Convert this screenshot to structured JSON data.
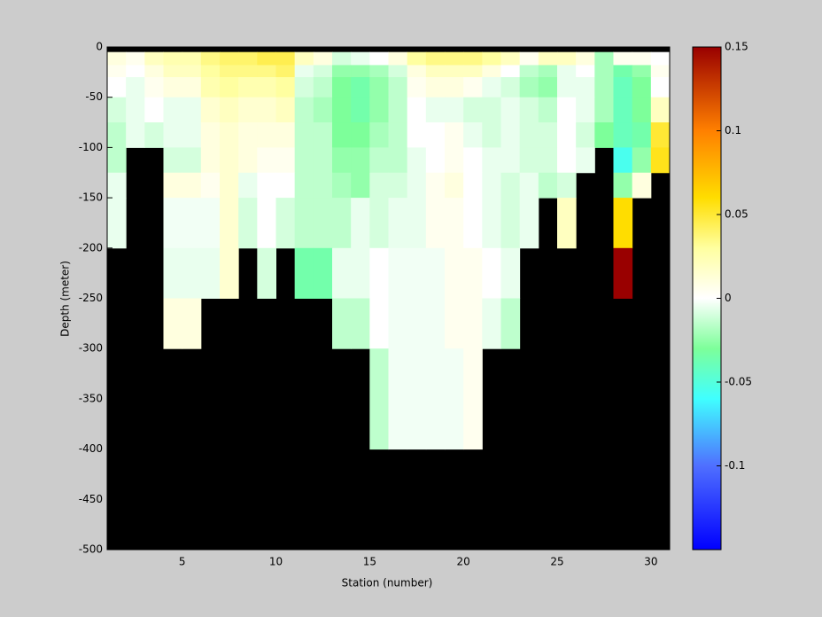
{
  "chart_data": {
    "type": "heatmap",
    "xlabel": "Station (number)",
    "ylabel": "Depth (meter)",
    "xlim": [
      1,
      31
    ],
    "ylim": [
      -500,
      0
    ],
    "xticks": [
      5,
      10,
      15,
      20,
      25,
      30
    ],
    "yticks": [
      0,
      -50,
      -100,
      -150,
      -200,
      -250,
      -300,
      -350,
      -400,
      -450,
      -500
    ],
    "x_edges": [
      1,
      2,
      3,
      4,
      5,
      6,
      7,
      8,
      9,
      10,
      11,
      12,
      13,
      14,
      15,
      16,
      17,
      18,
      19,
      20,
      21,
      22,
      23,
      24,
      25,
      26,
      27,
      28,
      29,
      30,
      31
    ],
    "y_edges": [
      -5,
      -18,
      -30,
      -50,
      -75,
      -100,
      -125,
      -150,
      -200,
      -250,
      -300,
      -400
    ],
    "nan_color": "#000000",
    "clim": [
      -0.15,
      0.15
    ],
    "cticks": [
      0.15,
      0.1,
      0.05,
      0,
      -0.05,
      -0.1
    ],
    "colorscale": [
      [
        -0.15,
        "#0000ff"
      ],
      [
        -0.1,
        "#4f6fff"
      ],
      [
        -0.06,
        "#40ffff"
      ],
      [
        -0.03,
        "#7dff9a"
      ],
      [
        0,
        "#ffffff"
      ],
      [
        0.03,
        "#ffffa0"
      ],
      [
        0.06,
        "#ffdd00"
      ],
      [
        0.1,
        "#ff8000"
      ],
      [
        0.15,
        "#990000"
      ]
    ],
    "z": [
      [
        0.01,
        0.005,
        0.02,
        0.025,
        0.025,
        0.035,
        0.04,
        0.04,
        0.045,
        0.045,
        0.02,
        0.01,
        -0.01,
        -0.005,
        0,
        0.01,
        0.03,
        0.035,
        0.035,
        0.035,
        0.03,
        0.02,
        0.005,
        0.02,
        0.02,
        0.01,
        -0.02,
        0.005,
        0.005,
        0
      ],
      [
        0.005,
        0,
        0.01,
        0.02,
        0.02,
        0.03,
        0.035,
        0.035,
        0.035,
        0.04,
        -0.005,
        -0.01,
        -0.025,
        -0.025,
        -0.02,
        -0.01,
        0.01,
        0.02,
        0.02,
        0.02,
        0.01,
        0,
        -0.015,
        -0.02,
        -0.005,
        0,
        -0.02,
        -0.035,
        -0.025,
        0.005
      ],
      [
        0,
        -0.005,
        0.005,
        0.01,
        0.01,
        0.025,
        0.03,
        0.025,
        0.025,
        0.03,
        -0.01,
        -0.015,
        -0.03,
        -0.035,
        -0.025,
        -0.015,
        0.005,
        0.01,
        0.01,
        0.005,
        -0.005,
        -0.01,
        -0.02,
        -0.025,
        -0.005,
        -0.005,
        -0.02,
        -0.04,
        -0.03,
        0
      ],
      [
        -0.01,
        -0.005,
        0,
        -0.005,
        -0.005,
        0.015,
        0.02,
        0.015,
        0.015,
        0.02,
        -0.015,
        -0.02,
        -0.03,
        -0.035,
        -0.025,
        -0.015,
        0,
        -0.005,
        -0.005,
        -0.01,
        -0.01,
        -0.005,
        -0.01,
        -0.015,
        0,
        -0.005,
        -0.02,
        -0.04,
        -0.03,
        0.02
      ],
      [
        -0.015,
        -0.005,
        -0.01,
        -0.005,
        -0.005,
        0.01,
        0.015,
        0.01,
        0.01,
        0.01,
        -0.015,
        -0.015,
        -0.03,
        -0.03,
        -0.02,
        -0.015,
        0,
        0,
        0.005,
        -0.005,
        -0.01,
        -0.005,
        -0.01,
        -0.01,
        0,
        -0.01,
        -0.03,
        -0.04,
        -0.035,
        0.05
      ],
      [
        -0.015,
        null,
        null,
        -0.01,
        -0.01,
        0.01,
        0.015,
        0.01,
        0.005,
        0.005,
        -0.015,
        -0.015,
        -0.025,
        -0.025,
        -0.015,
        -0.015,
        -0.005,
        0,
        0.005,
        0,
        -0.005,
        -0.005,
        -0.01,
        -0.01,
        0,
        -0.005,
        null,
        -0.055,
        -0.025,
        0.055
      ],
      [
        -0.005,
        null,
        null,
        0.01,
        0.01,
        0.005,
        0.015,
        -0.005,
        0,
        0,
        -0.015,
        -0.015,
        -0.02,
        -0.025,
        -0.01,
        -0.01,
        -0.005,
        0.005,
        0.01,
        0,
        -0.005,
        -0.01,
        -0.005,
        -0.015,
        -0.01,
        null,
        null,
        -0.025,
        0.01,
        null
      ],
      [
        -0.005,
        null,
        null,
        -0.003,
        -0.003,
        -0.003,
        0.015,
        -0.01,
        0,
        -0.01,
        -0.015,
        -0.015,
        -0.015,
        -0.005,
        -0.01,
        -0.005,
        -0.005,
        0.005,
        0.005,
        0,
        -0.005,
        -0.01,
        -0.005,
        null,
        0.02,
        null,
        null,
        0.06,
        null,
        null
      ],
      [
        null,
        null,
        null,
        -0.005,
        -0.005,
        -0.005,
        0.015,
        null,
        -0.01,
        null,
        -0.035,
        -0.035,
        -0.005,
        -0.005,
        0,
        -0.003,
        -0.003,
        -0.003,
        0.005,
        0.005,
        0,
        -0.005,
        null,
        null,
        null,
        null,
        null,
        0.15,
        null,
        null
      ],
      [
        null,
        null,
        null,
        0.01,
        0.01,
        null,
        null,
        null,
        null,
        null,
        null,
        null,
        -0.015,
        -0.015,
        0,
        -0.003,
        -0.003,
        -0.003,
        0.005,
        0.005,
        -0.005,
        -0.015,
        null,
        null,
        null,
        null,
        null,
        null,
        null,
        null
      ],
      [
        null,
        null,
        null,
        null,
        null,
        null,
        null,
        null,
        null,
        null,
        null,
        null,
        null,
        null,
        -0.015,
        -0.003,
        -0.003,
        -0.003,
        -0.003,
        0.005,
        null,
        null,
        null,
        null,
        null,
        null,
        null,
        null,
        null,
        null
      ]
    ]
  }
}
